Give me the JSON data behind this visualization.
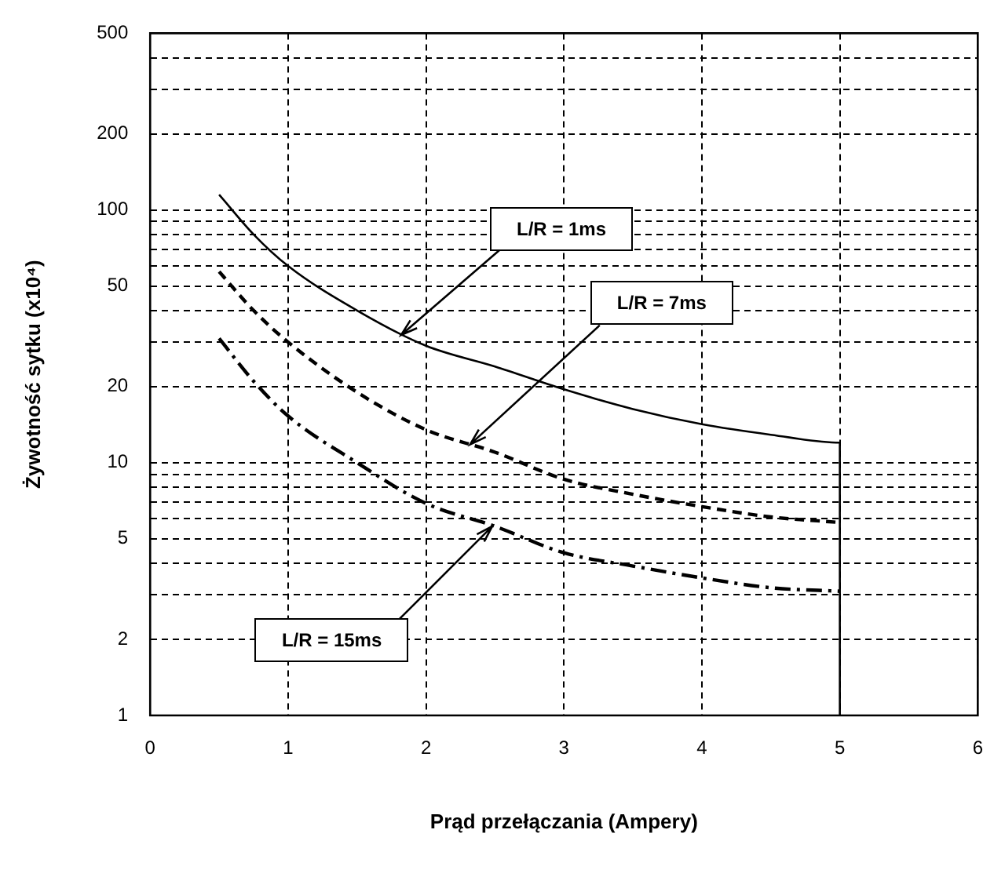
{
  "chart_data": {
    "type": "line",
    "xlabel": "Prąd przełączania (Ampery)",
    "ylabel": "Żywotność sytku (x10⁴)",
    "log": "y",
    "grid": true,
    "marker": "none",
    "xlim": [
      0,
      6
    ],
    "xticks": [
      0,
      1,
      2,
      3,
      4,
      5,
      6
    ],
    "ylim": [
      1,
      500
    ],
    "yticks": [
      1,
      2,
      {
        "value": 3,
        "label": null
      },
      {
        "value": 4,
        "label": null
      },
      5,
      {
        "value": 6,
        "label": null
      },
      {
        "value": 7,
        "label": null
      },
      {
        "value": 8,
        "label": null
      },
      {
        "value": 9,
        "label": null
      },
      10,
      20,
      {
        "value": 30,
        "label": null
      },
      {
        "value": 40,
        "label": null
      },
      50,
      {
        "value": 60,
        "label": null
      },
      {
        "value": 70,
        "label": null
      },
      {
        "value": 80,
        "label": null
      },
      {
        "value": 90,
        "label": null
      },
      100,
      200,
      {
        "value": 300,
        "label": null
      },
      {
        "value": 400,
        "label": null
      },
      500
    ],
    "series": [
      {
        "color": "#000000",
        "line_style": "solid",
        "x": [
          0.5,
          0.75,
          1,
          1.5,
          2,
          2.5,
          3,
          3.5,
          4,
          4.5,
          5,
          5
        ],
        "values": [
          115,
          80,
          60,
          40,
          29,
          24,
          19.5,
          16.3,
          14.2,
          12.9,
          12,
          1
        ]
      },
      {
        "color": "#000000",
        "line_style": "dashed",
        "x": [
          0.5,
          0.75,
          1,
          1.5,
          2,
          2.5,
          3,
          3.5,
          4,
          4.5,
          5
        ],
        "values": [
          57,
          40,
          30,
          19,
          13.5,
          11,
          8.6,
          7.5,
          6.7,
          6.1,
          5.8
        ]
      },
      {
        "color": "#000000",
        "line_style": "dashdot",
        "x": [
          0.5,
          0.75,
          1,
          1.5,
          2,
          2.5,
          3,
          3.5,
          4,
          4.5,
          5
        ],
        "values": [
          31,
          21,
          15.3,
          10,
          6.9,
          5.6,
          4.4,
          3.9,
          3.5,
          3.2,
          3.1
        ]
      }
    ],
    "annotations": [
      {
        "text": "L/R = 1ms",
        "x": 1.82,
        "y": 32
      },
      {
        "text": "L/R = 7ms",
        "x": 2.32,
        "y": 11.8
      },
      {
        "text": "L/R = 15ms",
        "x": 2.48,
        "y": 5.6
      }
    ]
  }
}
